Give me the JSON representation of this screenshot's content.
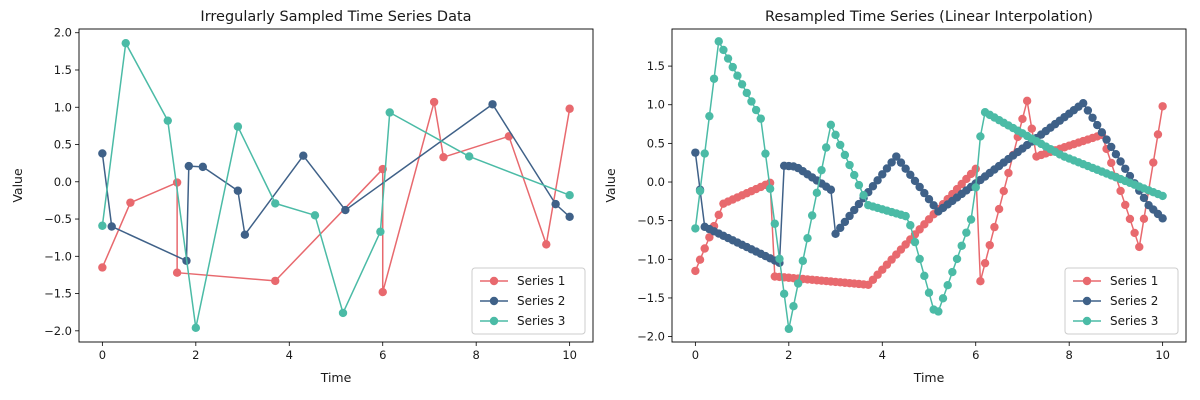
{
  "chart_data": [
    {
      "type": "line",
      "title": "Irregularly Sampled Time Series Data",
      "xlabel": "Time",
      "ylabel": "Value",
      "xlim": [
        -0.5,
        10.5
      ],
      "ylim": [
        -2.15,
        2.05
      ],
      "xticks": [
        0,
        2,
        4,
        6,
        8,
        10
      ],
      "xtick_labels": [
        "0",
        "2",
        "4",
        "6",
        "8",
        "10"
      ],
      "yticks": [
        -2.0,
        -1.5,
        -1.0,
        -0.5,
        0.0,
        0.5,
        1.0,
        1.5,
        2.0
      ],
      "ytick_labels": [
        "−2.0",
        "−1.5",
        "−1.0",
        "−0.5",
        "0.0",
        "0.5",
        "1.0",
        "1.5",
        "2.0"
      ],
      "legend": "lower-right",
      "series": [
        {
          "name": "Series 1",
          "color": "#e8696e",
          "x": [
            0.0,
            0.6,
            1.6,
            1.6,
            3.7,
            6.0,
            6.0,
            7.1,
            7.3,
            8.7,
            9.5,
            10.0
          ],
          "y": [
            -1.15,
            -0.28,
            -0.01,
            -1.22,
            -1.33,
            0.17,
            -1.48,
            1.07,
            0.33,
            0.61,
            -0.84,
            0.98
          ]
        },
        {
          "name": "Series 2",
          "color": "#3f6188",
          "x": [
            0.0,
            0.2,
            1.8,
            1.85,
            2.15,
            2.9,
            3.05,
            4.3,
            5.2,
            8.35,
            9.7,
            10.0
          ],
          "y": [
            0.38,
            -0.6,
            -1.06,
            0.21,
            0.2,
            -0.12,
            -0.71,
            0.35,
            -0.38,
            1.04,
            -0.3,
            -0.47
          ]
        },
        {
          "name": "Series 3",
          "color": "#4bbba6",
          "x": [
            0.0,
            0.5,
            1.4,
            2.0,
            2.9,
            3.7,
            4.55,
            5.15,
            5.95,
            6.15,
            7.85,
            10.0
          ],
          "y": [
            -0.59,
            1.86,
            0.82,
            -1.96,
            0.74,
            -0.29,
            -0.45,
            -1.76,
            -0.67,
            0.93,
            0.34,
            -0.18
          ]
        }
      ]
    },
    {
      "type": "line",
      "title": "Resampled Time Series (Linear Interpolation)",
      "xlabel": "Time",
      "ylabel": "Value",
      "xlim": [
        -0.5,
        10.5
      ],
      "ylim": [
        -2.07,
        1.98
      ],
      "xticks": [
        0,
        2,
        4,
        6,
        8,
        10
      ],
      "xtick_labels": [
        "0",
        "2",
        "4",
        "6",
        "8",
        "10"
      ],
      "yticks": [
        -2.0,
        -1.5,
        -1.0,
        -0.5,
        0.0,
        0.5,
        1.0,
        1.5
      ],
      "ytick_labels": [
        "−2.0",
        "−1.5",
        "−1.0",
        "−0.5",
        "0.0",
        "0.5",
        "1.0",
        "1.5"
      ],
      "legend": "lower-right",
      "resample": {
        "start": 0,
        "end": 10,
        "count": 101,
        "method": "linear"
      },
      "series": [
        {
          "name": "Series 1",
          "color": "#e8696e",
          "x": [
            0.0,
            0.6,
            1.6,
            1.65,
            3.7,
            6.0,
            6.05,
            7.1,
            7.3,
            8.7,
            9.5,
            10.0
          ],
          "y": [
            -1.15,
            -0.28,
            -0.01,
            -1.22,
            -1.33,
            0.17,
            -1.4,
            1.05,
            0.33,
            0.61,
            -0.84,
            0.98
          ]
        },
        {
          "name": "Series 2",
          "color": "#3f6188",
          "x": [
            0.0,
            0.2,
            1.85,
            1.9,
            2.15,
            2.9,
            3.0,
            4.3,
            5.2,
            8.3,
            9.7,
            10.0
          ],
          "y": [
            0.38,
            -0.58,
            -1.06,
            0.21,
            0.2,
            -0.1,
            -0.67,
            0.33,
            -0.38,
            1.02,
            -0.3,
            -0.47
          ]
        },
        {
          "name": "Series 3",
          "color": "#4bbba6",
          "x": [
            0.0,
            0.5,
            1.4,
            2.0,
            2.9,
            3.7,
            4.55,
            5.15,
            5.95,
            6.15,
            7.85,
            10.0
          ],
          "y": [
            -0.6,
            1.82,
            0.82,
            -1.9,
            0.74,
            -0.3,
            -0.45,
            -1.76,
            -0.4,
            0.92,
            0.34,
            -0.18
          ]
        }
      ]
    }
  ]
}
